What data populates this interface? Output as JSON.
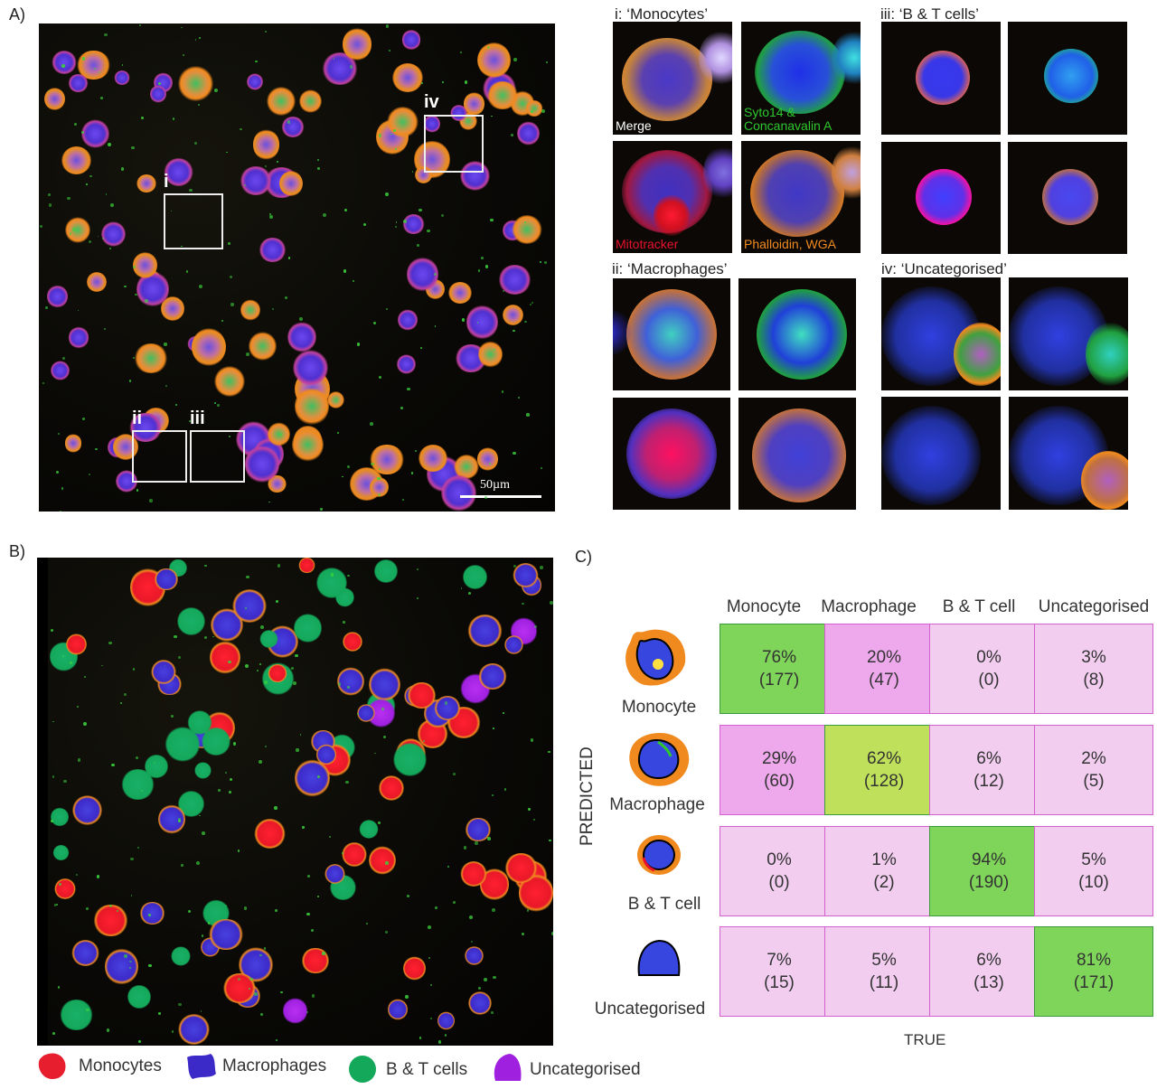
{
  "panel_letters": {
    "a": "A)",
    "b": "B)",
    "c": "C)"
  },
  "panel_a": {
    "roi_labels": [
      "i",
      "ii",
      "iii",
      "iv"
    ],
    "scalebar_label": "50µm"
  },
  "subpanels": {
    "i": {
      "title": "i: ‘Monocytes’",
      "channels": [
        "Merge",
        "Syto14 & Concanavalin A",
        "Mitotracker",
        "Phalloidin, WGA"
      ]
    },
    "ii": {
      "title": "ii: ‘Macrophages’"
    },
    "iii": {
      "title": "iii: ‘B & T cells’"
    },
    "iv": {
      "title": "iv: ‘Uncategorised’"
    }
  },
  "channel_colors": {
    "merge": "#ffffff",
    "syto": "#2ec82e",
    "mito": "#e8122a",
    "phalloidin": "#f08a1e"
  },
  "legend": [
    {
      "label": "Monocytes",
      "color": "#e61e2e"
    },
    {
      "label": "Macrophages",
      "color": "#3c2ac8"
    },
    {
      "label": "B & T cells",
      "color": "#14a85a"
    },
    {
      "label": "Uncategorised",
      "color": "#a020e0"
    }
  ],
  "confusion": {
    "columns": [
      "Monocyte",
      "Macrophage",
      "B & T cell",
      "Uncategorised"
    ],
    "rows": [
      "Monocyte",
      "Macrophage",
      "B & T cell",
      "Uncategorised"
    ],
    "y_axis_label": "PREDICTED",
    "x_axis_label": "TRUE",
    "cells": [
      [
        {
          "pct": "76%",
          "n": "(177)"
        },
        {
          "pct": "20%",
          "n": "(47)"
        },
        {
          "pct": "0%",
          "n": "(0)"
        },
        {
          "pct": "3%",
          "n": "(8)"
        }
      ],
      [
        {
          "pct": "29%",
          "n": "(60)"
        },
        {
          "pct": "62%",
          "n": "(128)"
        },
        {
          "pct": "6%",
          "n": "(12)"
        },
        {
          "pct": "2%",
          "n": "(5)"
        }
      ],
      [
        {
          "pct": "0%",
          "n": "(0)"
        },
        {
          "pct": "1%",
          "n": "(2)"
        },
        {
          "pct": "94%",
          "n": "(190)"
        },
        {
          "pct": "5%",
          "n": "(10)"
        }
      ],
      [
        {
          "pct": "7%",
          "n": "(15)"
        },
        {
          "pct": "5%",
          "n": "(11)"
        },
        {
          "pct": "6%",
          "n": "(13)"
        },
        {
          "pct": "81%",
          "n": "(171)"
        }
      ]
    ],
    "colors": {
      "correct": "#7fd45a",
      "correct_alt": "#bfe05a",
      "high_error": "#eea8ec",
      "low": "#f2cdf0",
      "border_pink": "#d45fd0",
      "border_green": "#3c9a3c"
    }
  }
}
